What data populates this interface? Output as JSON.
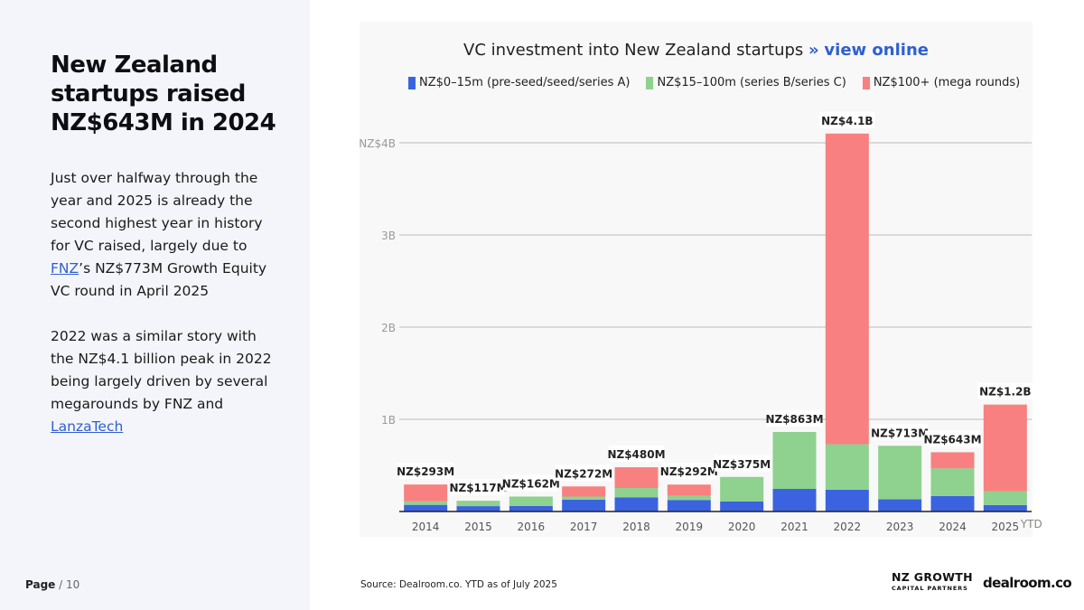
{
  "left": {
    "headline": "New Zealand startups raised NZ$643M in 2024",
    "para1_a": "Just over halfway through the year and 2025 is already the second highest year in history for VC raised, largely due to ",
    "para1_link": "FNZ",
    "para1_b": "’s NZ$773M Growth Equity VC round in April 2025",
    "para2_a": "2022 was a similar story with the NZ$4.1 billion peak in 2022 being largely driven by several megarounds by FNZ and ",
    "para2_link": "LanzaTech",
    "page_prefix": "Page",
    "page_sep": "/",
    "page_num": "10"
  },
  "chart_header": {
    "title": "VC investment into New Zealand startups",
    "arrows": "»",
    "link_text": "view online"
  },
  "footer": {
    "source": "Source:  Dealroom.co. YTD as of July 2025",
    "logo_nz_line1": "NZ GROWTH",
    "logo_nz_line2": "CAPITAL PARTNERS",
    "logo_dealroom": "dealroom.co"
  },
  "chart_data": {
    "type": "bar",
    "stacked": true,
    "title": "VC investment into New Zealand startups",
    "categories": [
      "2014",
      "2015",
      "2016",
      "2017",
      "2018",
      "2019",
      "2020",
      "2021",
      "2022",
      "2023",
      "2024",
      "2025"
    ],
    "category_suffix": {
      "2025": "YTD"
    },
    "series": [
      {
        "name": "NZ$0–15m (pre-seed/seed/series A)",
        "color": "#3b63e0",
        "values": [
          72,
          58,
          60,
          128,
          152,
          125,
          108,
          245,
          236,
          132,
          168,
          70
        ]
      },
      {
        "name": "NZ$15–100m (series B/series C)",
        "color": "#8fd18f",
        "values": [
          38,
          59,
          102,
          34,
          103,
          47,
          267,
          618,
          494,
          581,
          300,
          150
        ]
      },
      {
        "name": "NZ$100+ (mega rounds)",
        "color": "#f98080",
        "values": [
          183,
          0,
          0,
          110,
          225,
          120,
          0,
          0,
          3370,
          0,
          175,
          940
        ]
      }
    ],
    "totals": [
      "NZ$293M",
      "NZ$117M",
      "NZ$162M",
      "NZ$272M",
      "NZ$480M",
      "NZ$292M",
      "NZ$375M",
      "NZ$863M",
      "NZ$4.1B",
      "NZ$713M",
      "NZ$643M",
      "NZ$1.2B"
    ],
    "y_ticks": [
      {
        "value": 1000,
        "label": "1B"
      },
      {
        "value": 2000,
        "label": "2B"
      },
      {
        "value": 3000,
        "label": "3B"
      },
      {
        "value": 4000,
        "label": "NZ$4B"
      }
    ],
    "ylim": [
      0,
      4000
    ],
    "y_unit": "NZ$ millions",
    "grid": true,
    "legend_position": "top"
  }
}
